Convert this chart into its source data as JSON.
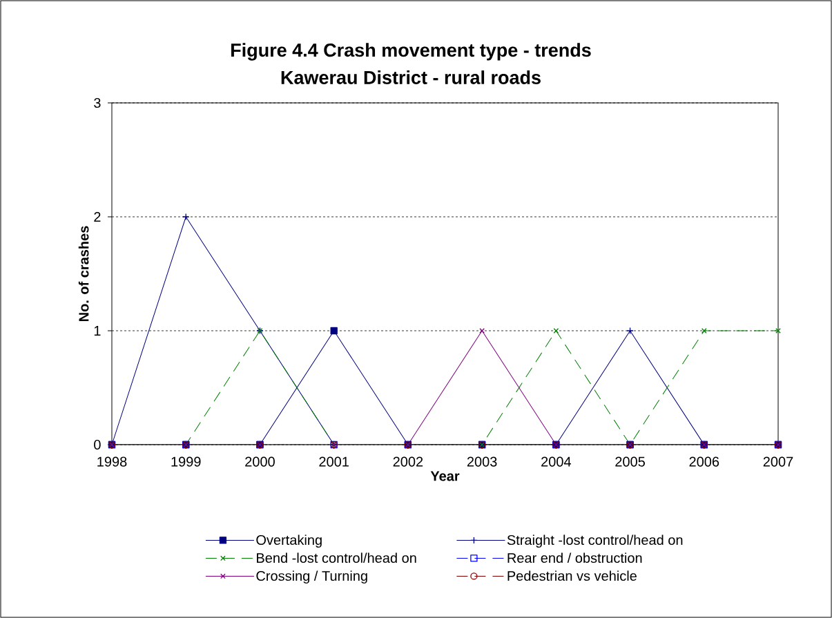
{
  "chart_data": {
    "type": "line",
    "title": "Figure 4.4 Crash movement type - trends",
    "subtitle": "Kawerau District - rural roads",
    "xlabel": "Year",
    "ylabel": "No. of crashes",
    "categories": [
      "1998",
      "1999",
      "2000",
      "2001",
      "2002",
      "2003",
      "2004",
      "2005",
      "2006",
      "2007"
    ],
    "ylim": [
      0,
      3
    ],
    "yticks": [
      0,
      1,
      2,
      3
    ],
    "grid": "y",
    "legend": "bottom",
    "series": [
      {
        "name": "Overtaking",
        "color": "#000080",
        "marker": "square",
        "line_style": "solid",
        "values": [
          0,
          0,
          0,
          1,
          0,
          0,
          0,
          0,
          0,
          0
        ]
      },
      {
        "name": "Straight -lost control/head on",
        "color": "#000080",
        "marker": "plus",
        "line_style": "solid",
        "values": [
          0,
          2,
          1,
          0,
          0,
          0,
          0,
          1,
          0,
          0
        ]
      },
      {
        "name": "Bend -lost control/head on",
        "color": "#008000",
        "marker": "cross",
        "line_style": "dashed",
        "values": [
          0,
          0,
          1,
          0,
          0,
          0,
          1,
          0,
          1,
          1
        ]
      },
      {
        "name": "Rear end / obstruction",
        "color": "#0000ff",
        "marker": "square-open",
        "line_style": "dashed",
        "values": [
          0,
          0,
          0,
          0,
          0,
          0,
          0,
          0,
          0,
          0
        ]
      },
      {
        "name": "Crossing / Turning",
        "color": "#800080",
        "marker": "cross",
        "line_style": "solid",
        "values": [
          0,
          0,
          0,
          0,
          0,
          1,
          0,
          0,
          0,
          0
        ]
      },
      {
        "name": "Pedestrian vs vehicle",
        "color": "#800000",
        "marker": "circle-open",
        "line_style": "dashed",
        "values": [
          0,
          0,
          0,
          0,
          0,
          0,
          0,
          0,
          0,
          0
        ]
      }
    ]
  }
}
